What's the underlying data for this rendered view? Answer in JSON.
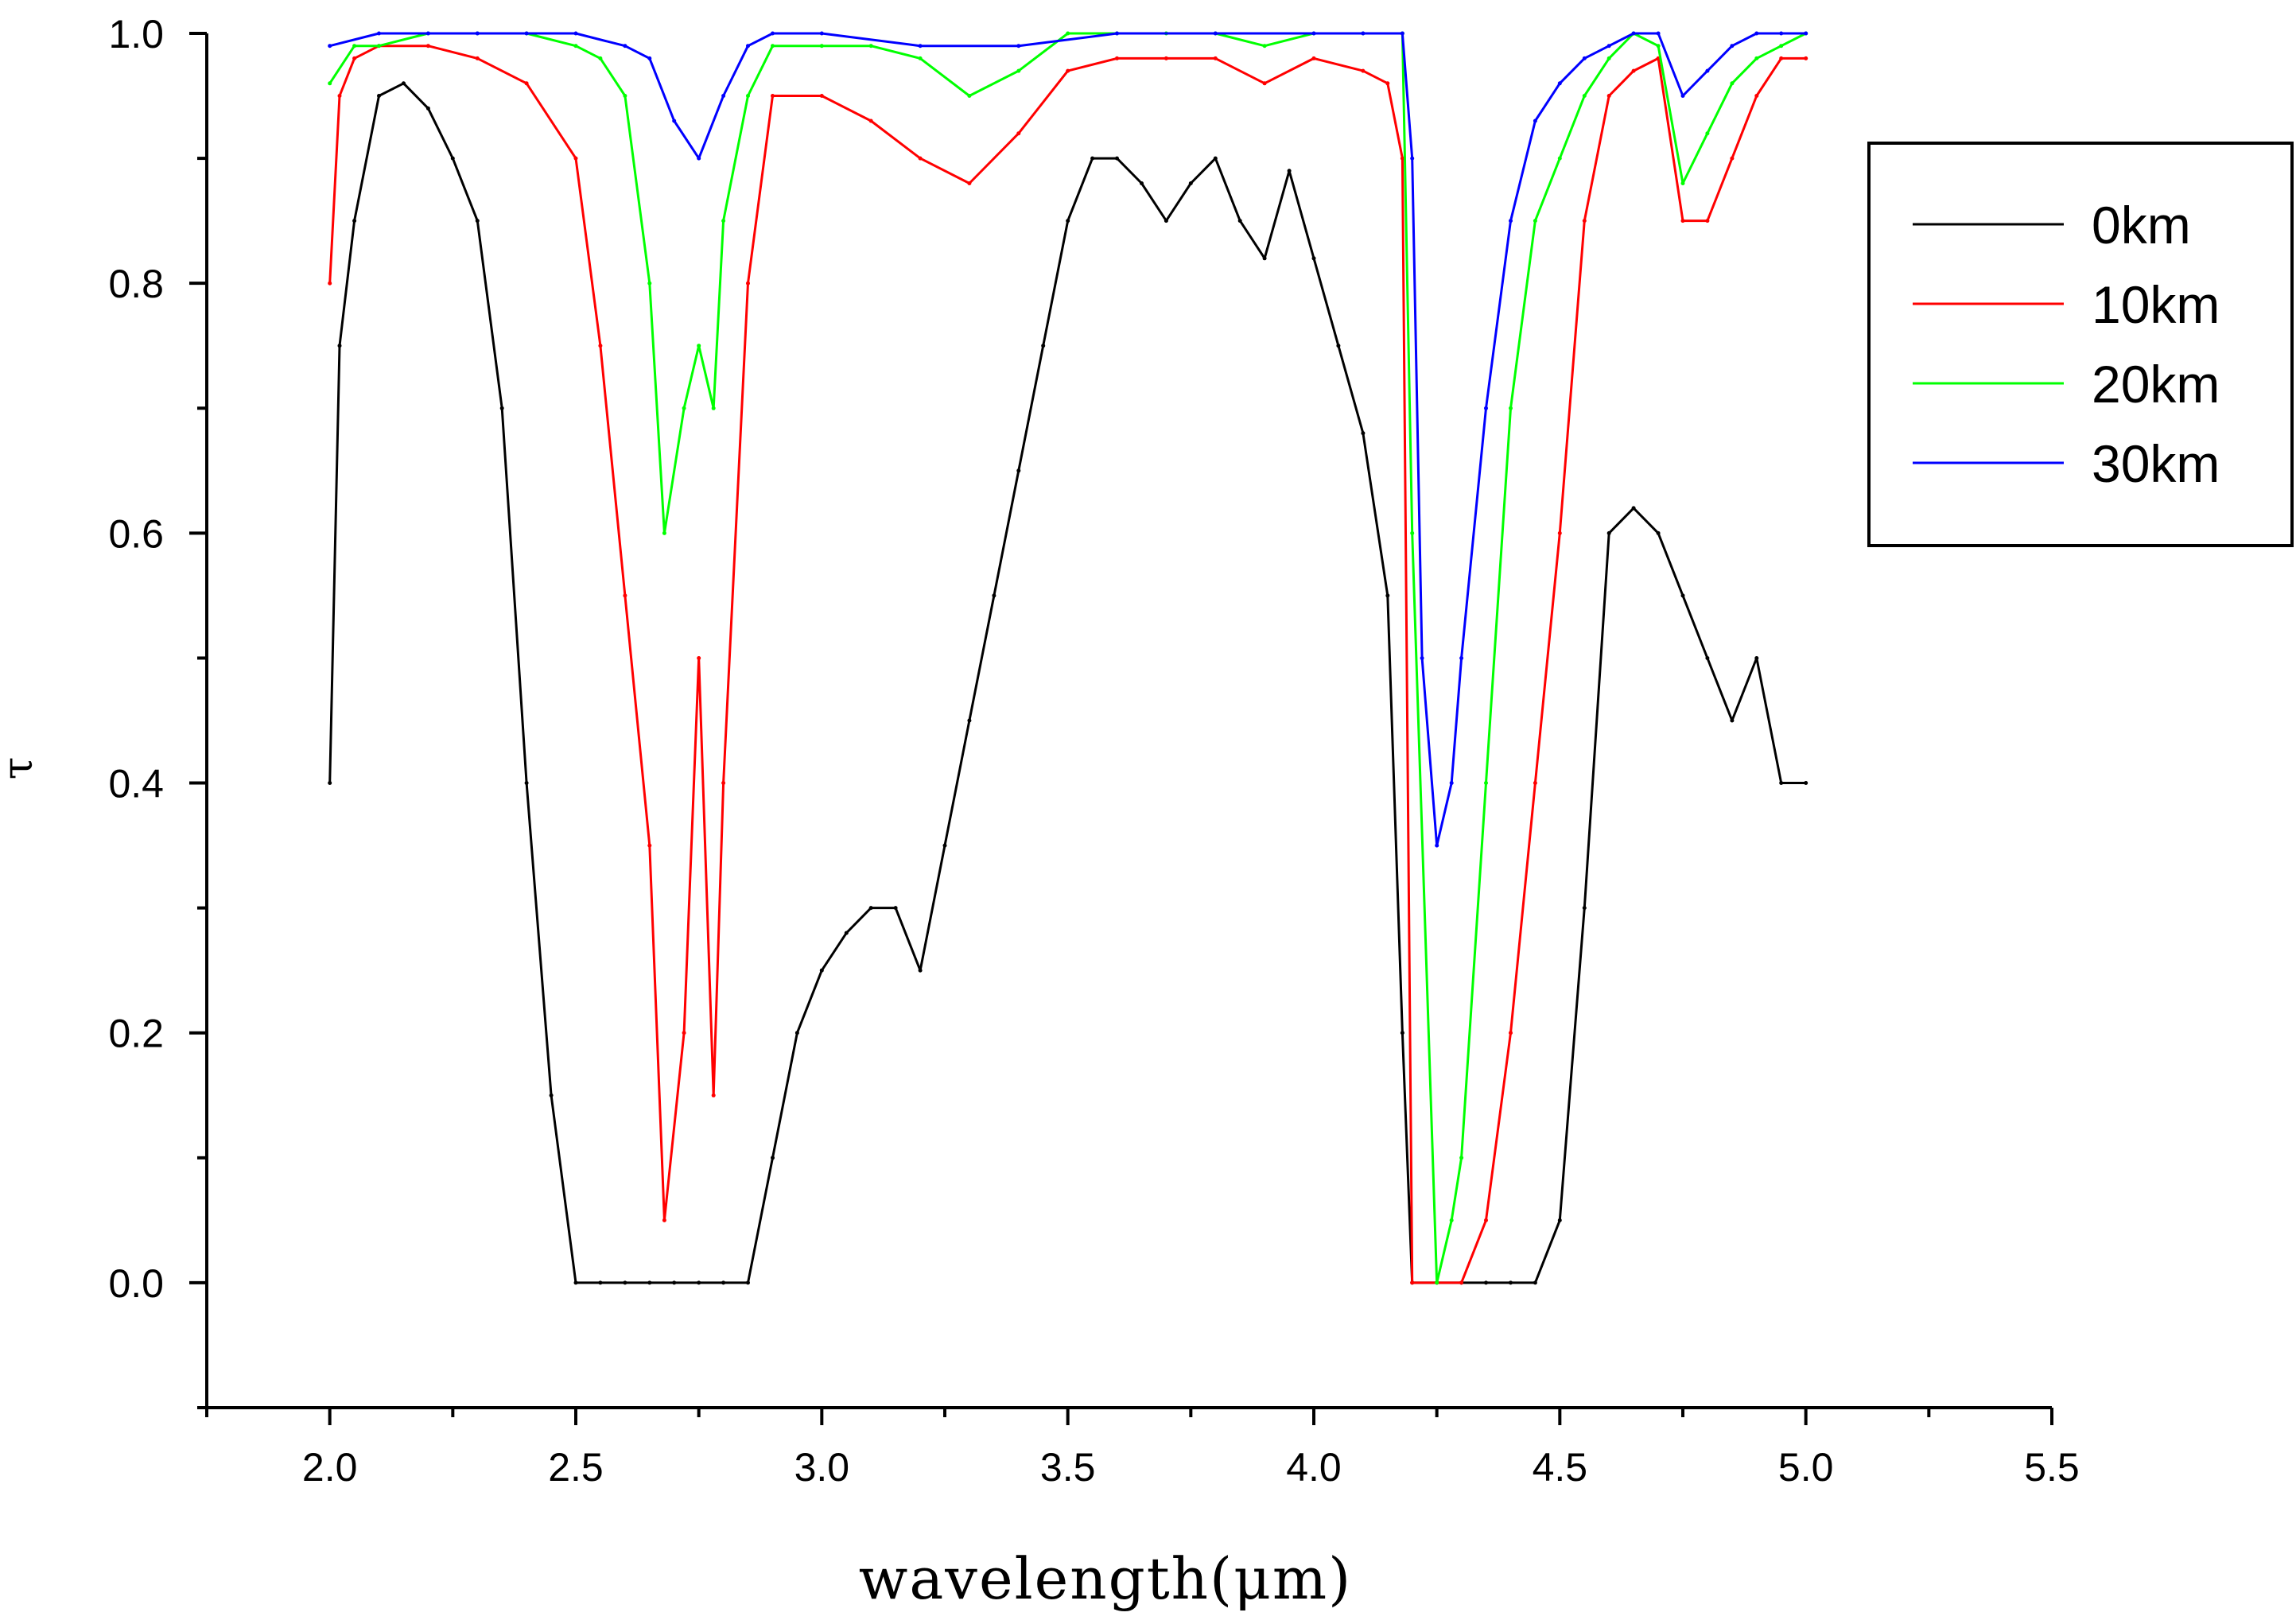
{
  "chart_data": {
    "type": "line",
    "title": "",
    "xlabel": "wavelength(μm)",
    "ylabel": "τ",
    "xlim": [
      1.75,
      5.5
    ],
    "ylim": [
      -0.1,
      1.0
    ],
    "xticks": [
      "2.0",
      "2.5",
      "3.0",
      "3.5",
      "4.0",
      "4.5",
      "5.0",
      "5.5"
    ],
    "yticks": [
      "0.0",
      "0.2",
      "0.4",
      "0.6",
      "0.8",
      "1.0"
    ],
    "legend_position": "top-right",
    "series": [
      {
        "name": "0km",
        "color": "#000000",
        "x": [
          2.0,
          2.02,
          2.05,
          2.1,
          2.15,
          2.2,
          2.25,
          2.3,
          2.35,
          2.4,
          2.45,
          2.5,
          2.55,
          2.6,
          2.65,
          2.7,
          2.75,
          2.8,
          2.85,
          2.9,
          2.95,
          3.0,
          3.05,
          3.1,
          3.15,
          3.2,
          3.25,
          3.3,
          3.35,
          3.4,
          3.45,
          3.5,
          3.55,
          3.6,
          3.65,
          3.7,
          3.75,
          3.8,
          3.85,
          3.9,
          3.95,
          4.0,
          4.05,
          4.1,
          4.15,
          4.18,
          4.2,
          4.25,
          4.3,
          4.35,
          4.4,
          4.45,
          4.5,
          4.55,
          4.6,
          4.65,
          4.7,
          4.75,
          4.8,
          4.85,
          4.9,
          4.95,
          5.0
        ],
        "y": [
          0.4,
          0.75,
          0.85,
          0.95,
          0.96,
          0.94,
          0.9,
          0.85,
          0.7,
          0.4,
          0.15,
          0.0,
          0.0,
          0.0,
          0.0,
          0.0,
          0.0,
          0.0,
          0.0,
          0.1,
          0.2,
          0.25,
          0.28,
          0.3,
          0.3,
          0.25,
          0.35,
          0.45,
          0.55,
          0.65,
          0.75,
          0.85,
          0.9,
          0.9,
          0.88,
          0.85,
          0.88,
          0.9,
          0.85,
          0.82,
          0.89,
          0.82,
          0.75,
          0.68,
          0.55,
          0.2,
          0.0,
          0.0,
          0.0,
          0.0,
          0.0,
          0.0,
          0.05,
          0.3,
          0.6,
          0.62,
          0.6,
          0.55,
          0.5,
          0.45,
          0.5,
          0.4,
          0.4
        ]
      },
      {
        "name": "10km",
        "color": "#ff0000",
        "x": [
          2.0,
          2.02,
          2.05,
          2.1,
          2.2,
          2.3,
          2.4,
          2.5,
          2.55,
          2.6,
          2.65,
          2.68,
          2.72,
          2.75,
          2.78,
          2.8,
          2.85,
          2.9,
          3.0,
          3.1,
          3.2,
          3.3,
          3.4,
          3.5,
          3.6,
          3.7,
          3.8,
          3.9,
          4.0,
          4.1,
          4.15,
          4.18,
          4.2,
          4.25,
          4.3,
          4.35,
          4.4,
          4.45,
          4.5,
          4.55,
          4.6,
          4.65,
          4.7,
          4.75,
          4.8,
          4.85,
          4.9,
          4.95,
          5.0
        ],
        "y": [
          0.8,
          0.95,
          0.98,
          0.99,
          0.99,
          0.98,
          0.96,
          0.9,
          0.75,
          0.55,
          0.35,
          0.05,
          0.2,
          0.5,
          0.15,
          0.4,
          0.8,
          0.95,
          0.95,
          0.93,
          0.9,
          0.88,
          0.92,
          0.97,
          0.98,
          0.98,
          0.98,
          0.96,
          0.98,
          0.97,
          0.96,
          0.9,
          0.0,
          0.0,
          0.0,
          0.05,
          0.2,
          0.4,
          0.6,
          0.85,
          0.95,
          0.97,
          0.98,
          0.85,
          0.85,
          0.9,
          0.95,
          0.98,
          0.98
        ]
      },
      {
        "name": "20km",
        "color": "#00ff00",
        "x": [
          2.0,
          2.05,
          2.1,
          2.2,
          2.3,
          2.4,
          2.5,
          2.55,
          2.6,
          2.65,
          2.68,
          2.72,
          2.75,
          2.78,
          2.8,
          2.85,
          2.9,
          3.0,
          3.1,
          3.2,
          3.3,
          3.4,
          3.5,
          3.6,
          3.7,
          3.8,
          3.9,
          4.0,
          4.1,
          4.18,
          4.2,
          4.25,
          4.28,
          4.3,
          4.35,
          4.4,
          4.45,
          4.5,
          4.55,
          4.6,
          4.65,
          4.7,
          4.75,
          4.8,
          4.85,
          4.9,
          4.95,
          5.0
        ],
        "y": [
          0.96,
          0.99,
          0.99,
          1.0,
          1.0,
          1.0,
          0.99,
          0.98,
          0.95,
          0.8,
          0.6,
          0.7,
          0.75,
          0.7,
          0.85,
          0.95,
          0.99,
          0.99,
          0.99,
          0.98,
          0.95,
          0.97,
          1.0,
          1.0,
          1.0,
          1.0,
          0.99,
          1.0,
          1.0,
          1.0,
          0.6,
          0.0,
          0.05,
          0.1,
          0.4,
          0.7,
          0.85,
          0.9,
          0.95,
          0.98,
          1.0,
          0.99,
          0.88,
          0.92,
          0.96,
          0.98,
          0.99,
          1.0
        ]
      },
      {
        "name": "30km",
        "color": "#0000ff",
        "x": [
          2.0,
          2.1,
          2.2,
          2.3,
          2.4,
          2.5,
          2.6,
          2.65,
          2.7,
          2.75,
          2.8,
          2.85,
          2.9,
          3.0,
          3.2,
          3.4,
          3.6,
          3.8,
          4.0,
          4.1,
          4.18,
          4.2,
          4.22,
          4.25,
          4.28,
          4.3,
          4.35,
          4.4,
          4.45,
          4.5,
          4.55,
          4.6,
          4.65,
          4.7,
          4.75,
          4.8,
          4.85,
          4.9,
          4.95,
          5.0
        ],
        "y": [
          0.99,
          1.0,
          1.0,
          1.0,
          1.0,
          1.0,
          0.99,
          0.98,
          0.93,
          0.9,
          0.95,
          0.99,
          1.0,
          1.0,
          0.99,
          0.99,
          1.0,
          1.0,
          1.0,
          1.0,
          1.0,
          0.9,
          0.5,
          0.35,
          0.4,
          0.5,
          0.7,
          0.85,
          0.93,
          0.96,
          0.98,
          0.99,
          1.0,
          1.0,
          0.95,
          0.97,
          0.99,
          1.0,
          1.0,
          1.0
        ]
      }
    ]
  }
}
